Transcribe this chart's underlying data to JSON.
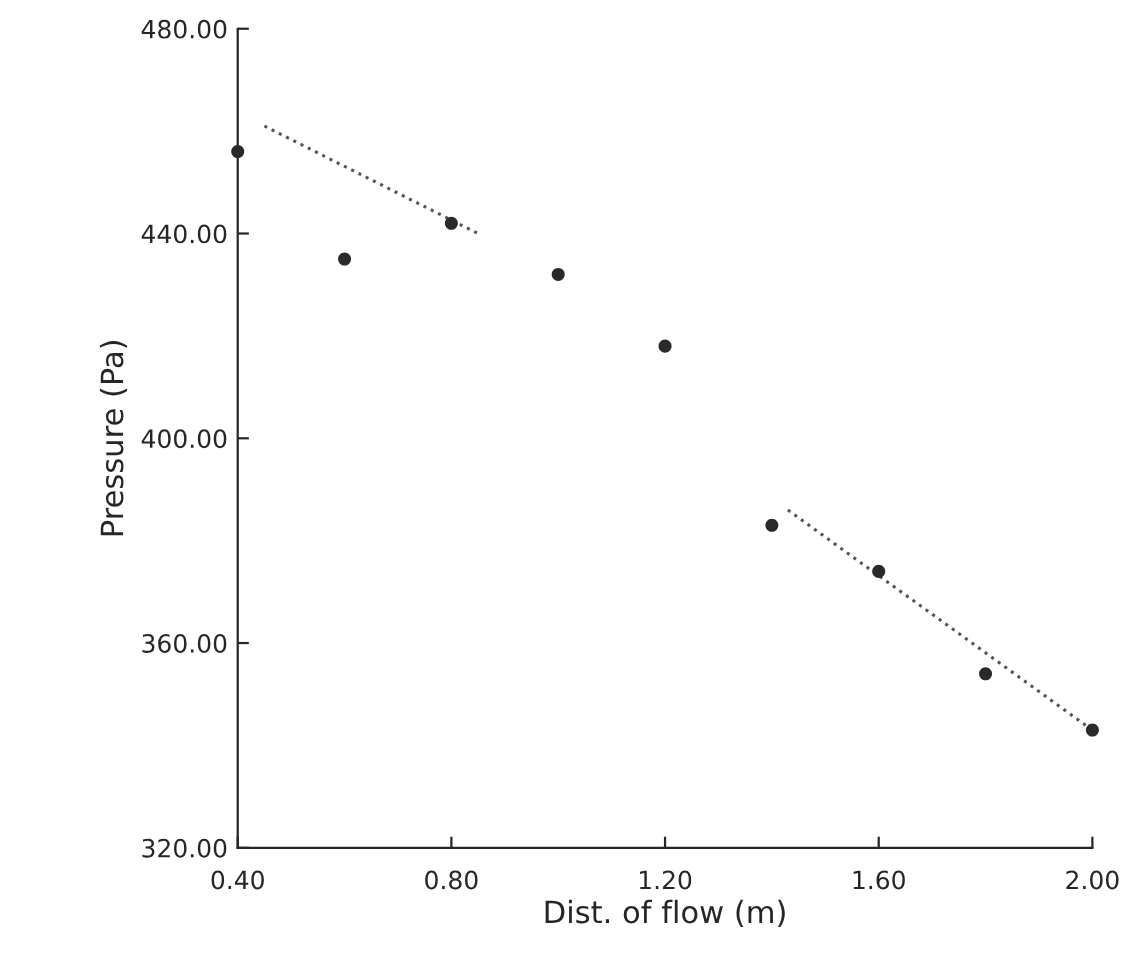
{
  "chart_data": {
    "type": "scatter",
    "xlabel": "Dist. of flow (m)",
    "ylabel": "Pressure (Pa)",
    "xlim": [
      0.4,
      2.0
    ],
    "ylim": [
      320,
      480
    ],
    "xticks": [
      {
        "value": 0.4,
        "label": "0.40"
      },
      {
        "value": 0.8,
        "label": "0.80"
      },
      {
        "value": 1.2,
        "label": "1.20"
      },
      {
        "value": 1.6,
        "label": "1.60"
      },
      {
        "value": 2.0,
        "label": "2.00"
      }
    ],
    "yticks": [
      {
        "value": 320,
        "label": "320.00"
      },
      {
        "value": 360,
        "label": "360.00"
      },
      {
        "value": 400,
        "label": "400.00"
      },
      {
        "value": 440,
        "label": "440.00"
      },
      {
        "value": 480,
        "label": "480.00"
      }
    ],
    "grid": false,
    "marker": "circle",
    "series": [
      {
        "color": "#2a2a2a",
        "x": [
          0.4,
          0.6,
          0.8,
          1.0,
          1.2,
          1.4,
          1.6,
          1.8,
          2.0
        ],
        "values": [
          456,
          435,
          442,
          432,
          418,
          383,
          374,
          354,
          343
        ]
      },
      {
        "type": "line",
        "line_style": "dotted",
        "marker": "none",
        "color": "#555555",
        "x": [
          0.45,
          0.85,
          1.1,
          1.43,
          2.0
        ],
        "values": [
          461,
          440,
          null,
          386,
          343
        ]
      }
    ]
  }
}
